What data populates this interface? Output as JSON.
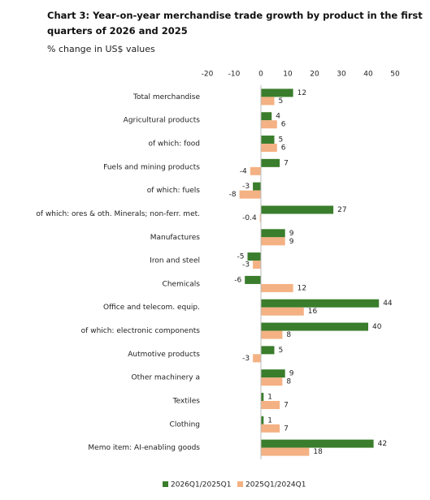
{
  "chart_data": {
    "type": "bar",
    "orientation": "horizontal",
    "title": "Chart 3: Year-on-year merchandise trade growth by product in the first quarters of 2026 and 2025",
    "subtitle": "% change in US$ values",
    "categories": [
      "Total merchandise",
      "Agricultural products",
      "of which: food",
      "Fuels and mining products",
      "of which: fuels",
      "of which: ores & oth. Minerals; non-ferr. met.",
      "Manufactures",
      "Iron and steel",
      "Chemicals",
      "Office and telecom. equip.",
      "of which: electronic components",
      "Autmotive products",
      "Other machinery a",
      "Textiles",
      "Clothing",
      "Memo item: AI-enabling goods"
    ],
    "series": [
      {
        "name": "2026Q1/2025Q1",
        "color": "#3a7d2c",
        "values": [
          12,
          4,
          5,
          7,
          -3,
          27,
          9,
          -5,
          -6,
          44,
          40,
          5,
          9,
          1,
          1,
          42
        ]
      },
      {
        "name": "2025Q1/2024Q1",
        "color": "#f4b183",
        "values": [
          5,
          6,
          6,
          -4,
          -8,
          -0.4,
          9,
          -3,
          12,
          16,
          8,
          -3,
          8,
          7,
          7,
          18
        ]
      }
    ],
    "xlim": [
      -20,
      50
    ],
    "xticks": [
      -20,
      -10,
      0,
      10,
      20,
      30,
      40,
      50
    ],
    "grid": false,
    "legend": "bottom"
  }
}
